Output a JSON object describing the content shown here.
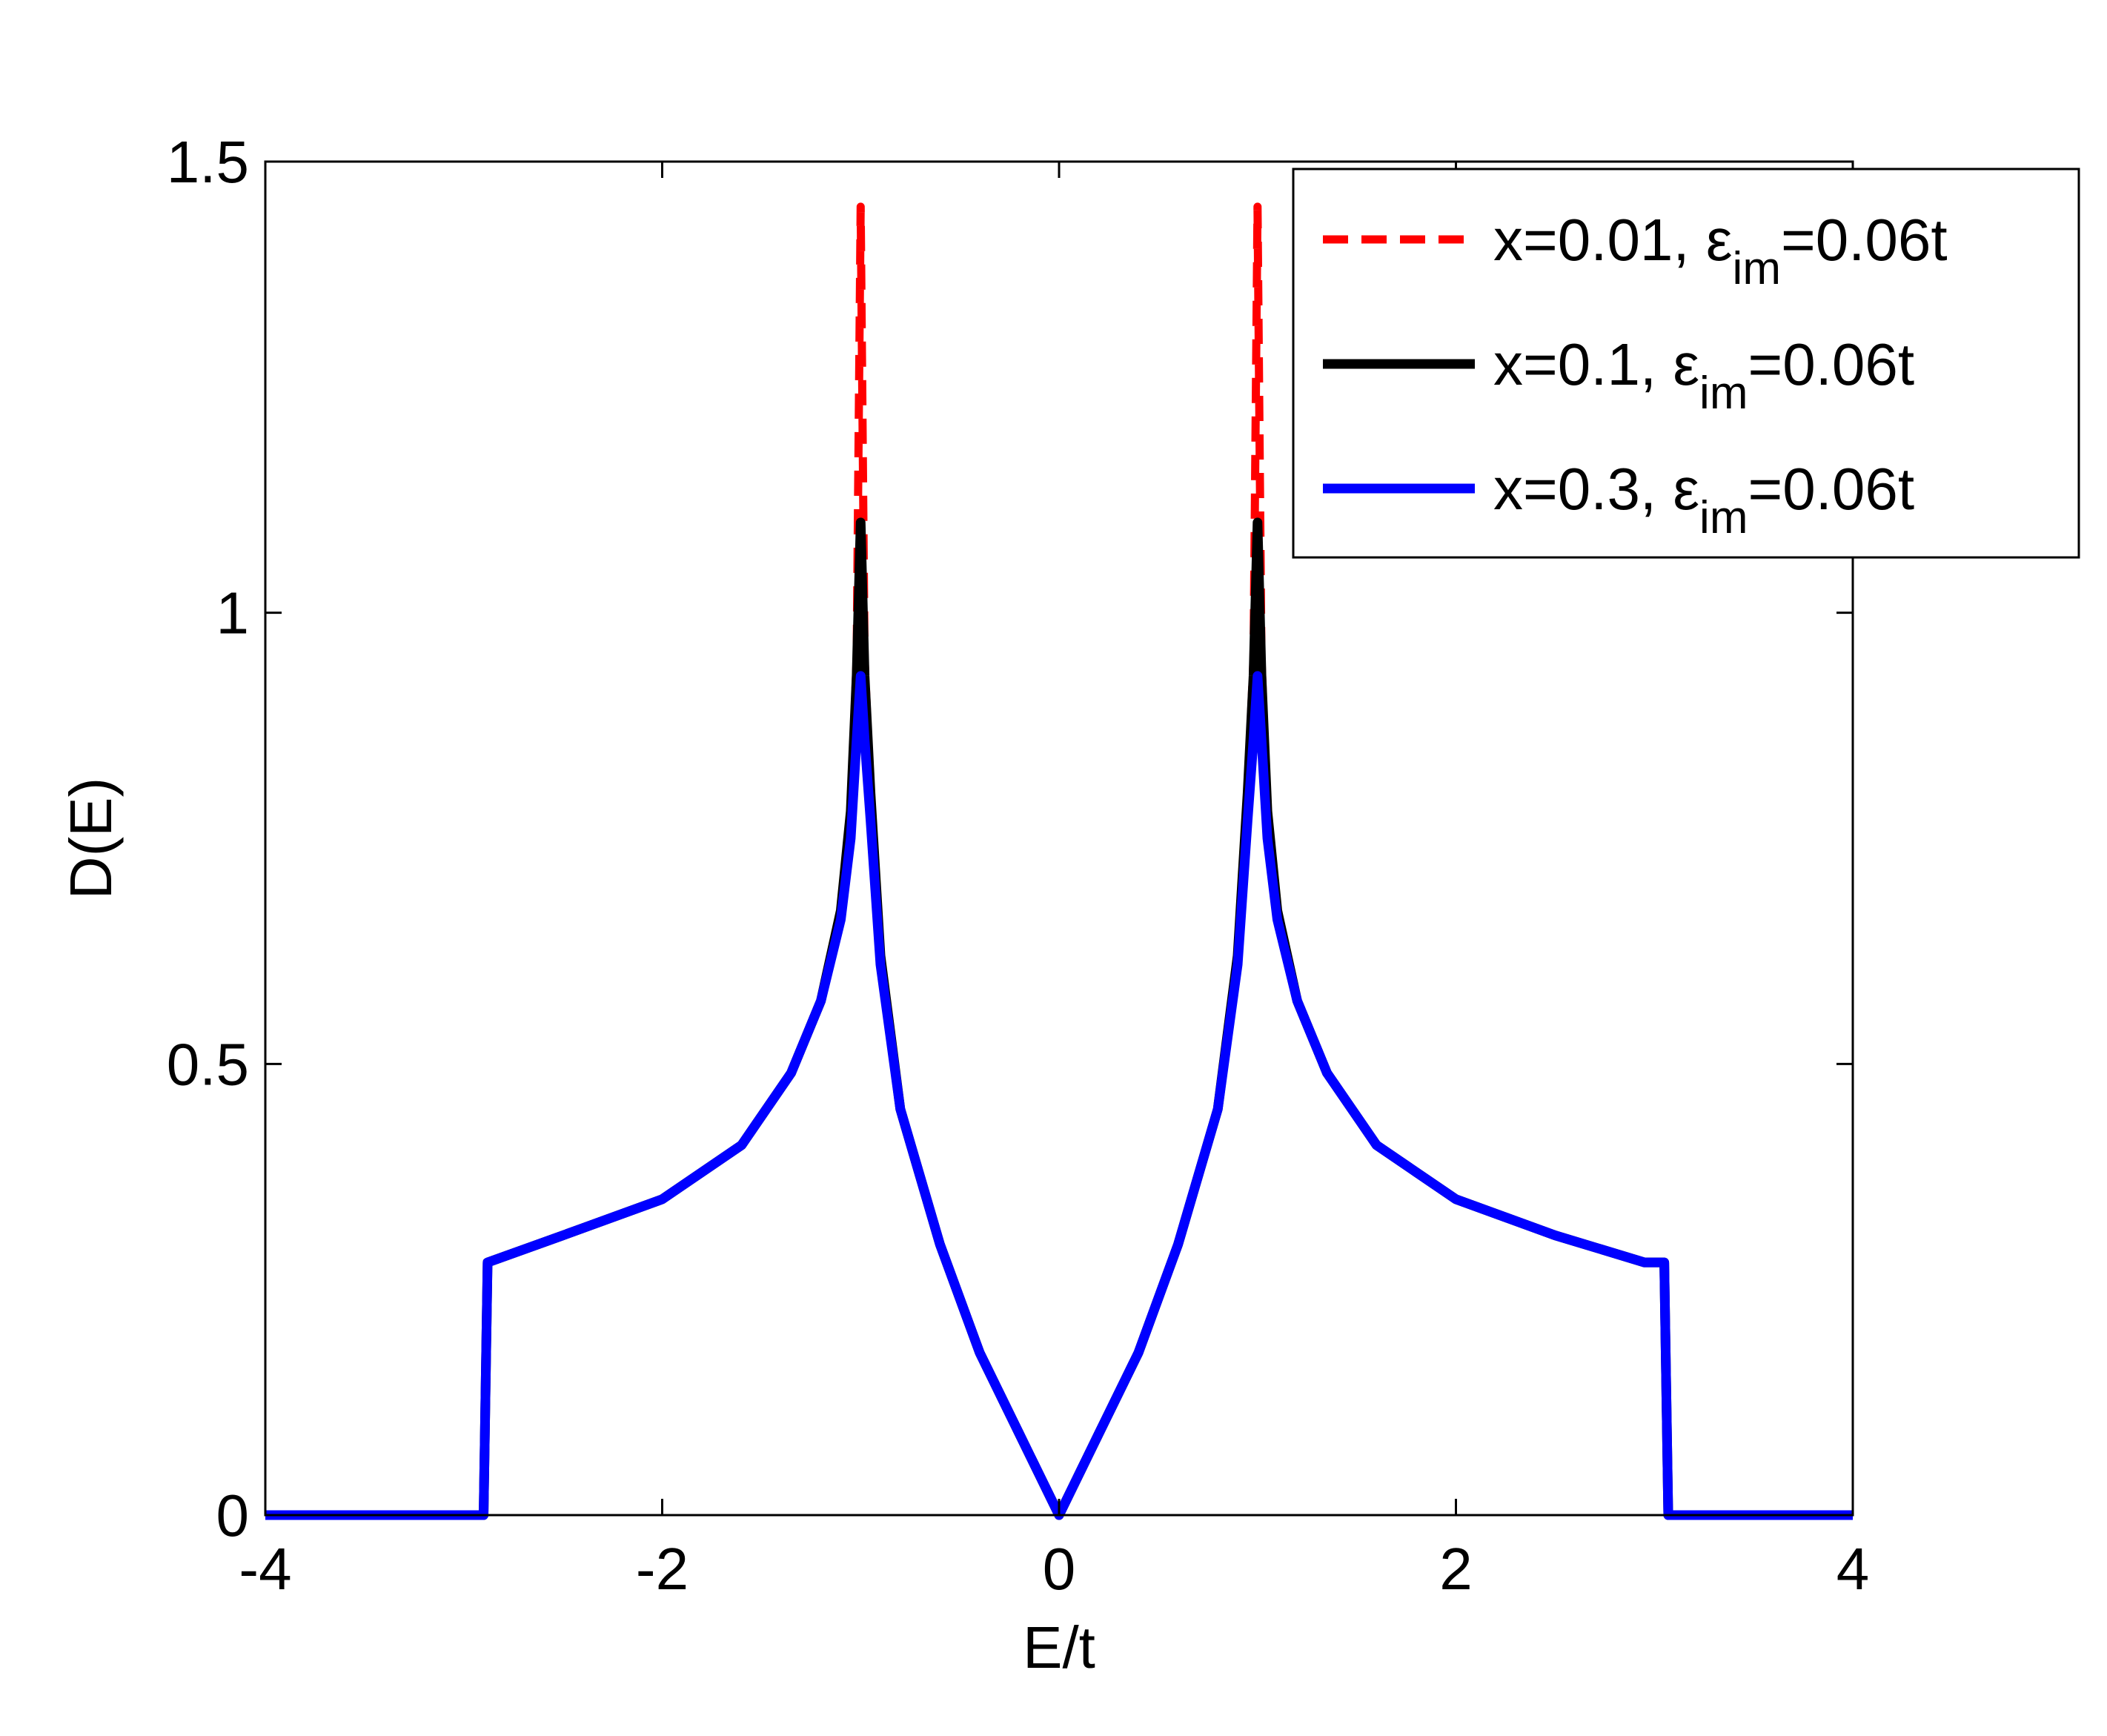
{
  "chart_data": {
    "type": "line",
    "title": "",
    "xlabel": "E/t",
    "ylabel": "D(E)",
    "xlim": [
      -4,
      4
    ],
    "ylim": [
      0,
      1.5
    ],
    "xticks": [
      "-4",
      "-2",
      "0",
      "2",
      "4"
    ],
    "yticks": [
      "0",
      "0.5",
      "1",
      "1.5"
    ],
    "grid": false,
    "legend_position": "top-right",
    "series": [
      {
        "name": "x=0.01, ε_im=0.06t",
        "legend": {
          "main": "x=0.01, ε",
          "sub": "im",
          "tail": "=0.06t"
        },
        "color": "#ff0000",
        "style": "dashed",
        "x": [
          -4,
          -2.9,
          -2.88,
          -2.5,
          -2,
          -1.6,
          -1.35,
          -1.2,
          -1.1,
          -1.05,
          -1.02,
          -1.0,
          -0.98,
          -0.95,
          -0.9,
          -0.8,
          -0.6,
          -0.4,
          -0.2,
          0,
          0.2,
          0.4,
          0.6,
          0.8,
          0.9,
          0.95,
          0.98,
          1.0,
          1.02,
          1.05,
          1.1,
          1.2,
          1.35,
          1.6,
          2,
          2.5,
          2.95,
          3.05,
          3.07,
          4
        ],
        "y": [
          0,
          0,
          0.28,
          0.31,
          0.35,
          0.41,
          0.49,
          0.57,
          0.67,
          0.78,
          0.95,
          1.45,
          0.95,
          0.8,
          0.62,
          0.45,
          0.3,
          0.18,
          0.09,
          0,
          0.09,
          0.18,
          0.3,
          0.45,
          0.62,
          0.8,
          0.95,
          1.45,
          0.95,
          0.78,
          0.67,
          0.57,
          0.49,
          0.41,
          0.35,
          0.31,
          0.28,
          0.28,
          0,
          0
        ]
      },
      {
        "name": "x=0.1, ε_im=0.06t",
        "legend": {
          "main": "x=0.1, ε",
          "sub": "im",
          "tail": "=0.06t"
        },
        "color": "#000000",
        "style": "solid",
        "x": [
          -4,
          -2.9,
          -2.88,
          -2.5,
          -2,
          -1.6,
          -1.35,
          -1.2,
          -1.1,
          -1.05,
          -1.02,
          -1.0,
          -0.98,
          -0.95,
          -0.9,
          -0.8,
          -0.6,
          -0.4,
          -0.2,
          0,
          0.2,
          0.4,
          0.6,
          0.8,
          0.9,
          0.95,
          0.98,
          1.0,
          1.02,
          1.05,
          1.1,
          1.2,
          1.35,
          1.6,
          2,
          2.5,
          2.95,
          3.05,
          3.07,
          4
        ],
        "y": [
          0,
          0,
          0.28,
          0.31,
          0.35,
          0.41,
          0.49,
          0.57,
          0.67,
          0.78,
          0.93,
          1.1,
          0.93,
          0.8,
          0.62,
          0.45,
          0.3,
          0.18,
          0.09,
          0,
          0.09,
          0.18,
          0.3,
          0.45,
          0.62,
          0.8,
          0.93,
          1.1,
          0.93,
          0.78,
          0.67,
          0.57,
          0.49,
          0.41,
          0.35,
          0.31,
          0.28,
          0.28,
          0,
          0
        ]
      },
      {
        "name": "x=0.3, ε_im=0.06t",
        "legend": {
          "main": "x=0.3, ε",
          "sub": "im",
          "tail": "=0.06t"
        },
        "color": "#0000ff",
        "style": "solid",
        "x": [
          -4,
          -2.9,
          -2.88,
          -2.5,
          -2,
          -1.6,
          -1.35,
          -1.2,
          -1.1,
          -1.05,
          -1.02,
          -1.0,
          -0.98,
          -0.95,
          -0.9,
          -0.8,
          -0.6,
          -0.4,
          -0.2,
          0,
          0.2,
          0.4,
          0.6,
          0.8,
          0.9,
          0.95,
          0.98,
          1.0,
          1.02,
          1.05,
          1.1,
          1.2,
          1.35,
          1.6,
          2,
          2.5,
          2.95,
          3.05,
          3.07,
          4
        ],
        "y": [
          0,
          0,
          0.28,
          0.31,
          0.35,
          0.41,
          0.49,
          0.57,
          0.66,
          0.75,
          0.86,
          0.93,
          0.86,
          0.77,
          0.61,
          0.45,
          0.3,
          0.18,
          0.09,
          0,
          0.09,
          0.18,
          0.3,
          0.45,
          0.61,
          0.77,
          0.86,
          0.93,
          0.86,
          0.75,
          0.66,
          0.57,
          0.49,
          0.41,
          0.35,
          0.31,
          0.28,
          0.28,
          0,
          0
        ]
      }
    ]
  }
}
